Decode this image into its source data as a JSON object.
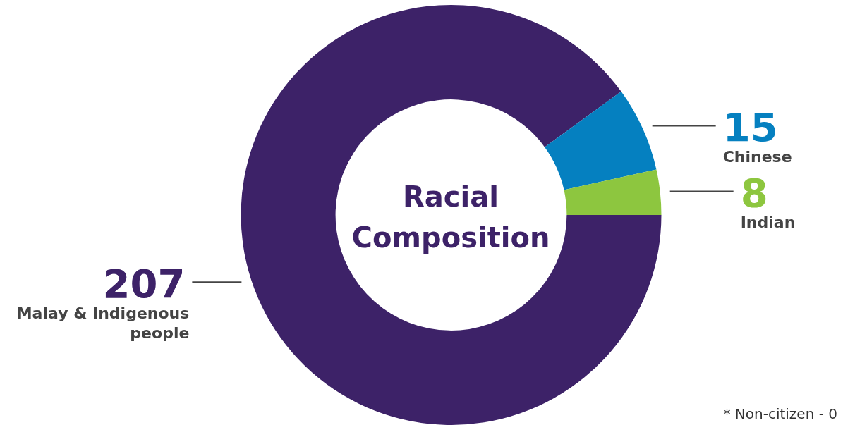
{
  "chart_data": {
    "type": "donut",
    "title": "Racial Composition",
    "categories": [
      "Malay & Indigenous people",
      "Chinese",
      "Indian"
    ],
    "values": [
      207,
      15,
      8
    ],
    "colors": [
      "#3d2268",
      "#0580c0",
      "#8dc63f"
    ],
    "data_labels": true,
    "legend": false,
    "annotations": [
      "* Non-citizen - 0"
    ]
  }
}
